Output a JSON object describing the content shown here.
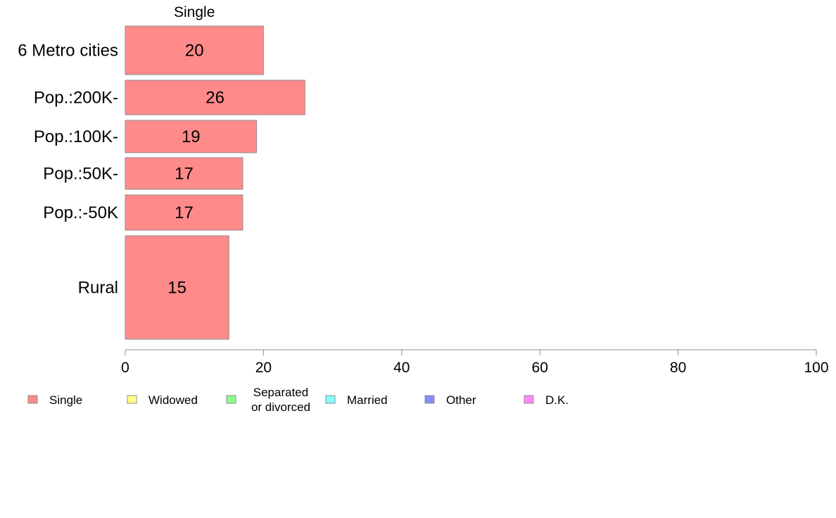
{
  "chart_data": {
    "type": "bar",
    "orientation": "horizontal",
    "stacked": true,
    "categories": [
      "6 Metro cities",
      "Pop.:200K-",
      "Pop.:100K-",
      "Pop.:50K-",
      "Pop.:-50K",
      "Rural"
    ],
    "series": [
      {
        "name": "Single",
        "values": [
          20,
          26,
          19,
          17,
          17,
          15
        ],
        "color": "#ff8a8a"
      }
    ],
    "segment_header": "Single",
    "data_labels": [
      "20",
      "26",
      "19",
      "17",
      "17",
      "15"
    ],
    "xlim": [
      0,
      100
    ],
    "xticks": [
      0,
      20,
      40,
      60,
      80,
      100
    ],
    "xtick_labels": [
      "0",
      "20",
      "40",
      "60",
      "80",
      "100"
    ],
    "grid": false,
    "legend_position": "bottom",
    "legend": [
      {
        "label": "Single",
        "color": "#ff8a8a"
      },
      {
        "label": "Widowed",
        "color": "#ffff88"
      },
      {
        "label": "Separated\nor divorced",
        "color": "#88ff88"
      },
      {
        "label": "Married",
        "color": "#88ffff"
      },
      {
        "label": "Other",
        "color": "#8888ff"
      },
      {
        "label": "D.K.",
        "color": "#ff88ff"
      }
    ]
  }
}
